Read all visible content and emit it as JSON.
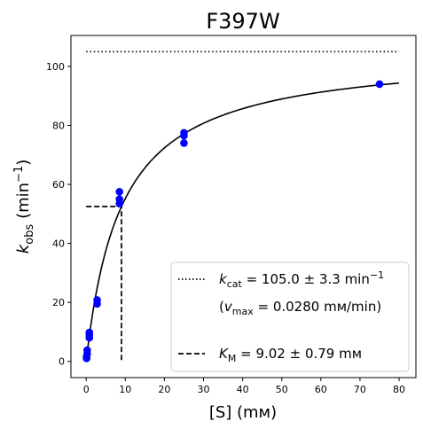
{
  "chart_data": {
    "type": "scatter",
    "title": "F397W",
    "xlabel": "[S] (mᴍ)",
    "ylabel_main": "k",
    "ylabel_sub": "obs",
    "ylabel_unit": "(min",
    "ylabel_sup": "−1",
    "ylabel_close": ")",
    "xlim": [
      -3.9,
      84.3
    ],
    "ylim": [
      -5.5,
      110.5
    ],
    "xticks": [
      0,
      10,
      20,
      30,
      40,
      50,
      60,
      70,
      80
    ],
    "yticks": [
      0,
      20,
      40,
      60,
      80,
      100
    ],
    "points": [
      {
        "x": 0.1,
        "y": 1.0
      },
      {
        "x": 0.1,
        "y": 1.5
      },
      {
        "x": 0.25,
        "y": 2.5
      },
      {
        "x": 0.25,
        "y": 3.8
      },
      {
        "x": 0.8,
        "y": 8.0
      },
      {
        "x": 0.8,
        "y": 9.0
      },
      {
        "x": 0.8,
        "y": 9.8
      },
      {
        "x": 2.8,
        "y": 19.5
      },
      {
        "x": 2.8,
        "y": 20.8
      },
      {
        "x": 8.5,
        "y": 53.5
      },
      {
        "x": 8.5,
        "y": 55.0
      },
      {
        "x": 8.5,
        "y": 57.5
      },
      {
        "x": 25.0,
        "y": 74.0
      },
      {
        "x": 25.0,
        "y": 76.5
      },
      {
        "x": 25.0,
        "y": 77.5
      },
      {
        "x": 75.0,
        "y": 94.0
      }
    ],
    "fit": {
      "kcat": 105.0,
      "KM": 9.02,
      "x_start": 0,
      "x_end": 80
    },
    "kcat_line": {
      "y": 105.0,
      "x_start": 0,
      "x_end": 80
    },
    "km_line": {
      "x": 9.02,
      "y": 52.5,
      "x_start": 0
    },
    "colors": {
      "points": "#0000ff",
      "lines": "#000000"
    },
    "legend": {
      "position": "lower-right",
      "kcat_k": "k",
      "kcat_sub": "cat",
      "kcat_rest": " = 105.0 ± 3.3 min",
      "kcat_sup": "−1",
      "vmax_open": "(",
      "vmax_v": "v",
      "vmax_sub": "max",
      "vmax_rest": " = 0.0280 mᴍ/min)",
      "km_k": "K",
      "km_sub": "M",
      "km_rest": " = 9.02 ± 0.79 mᴍ"
    }
  }
}
